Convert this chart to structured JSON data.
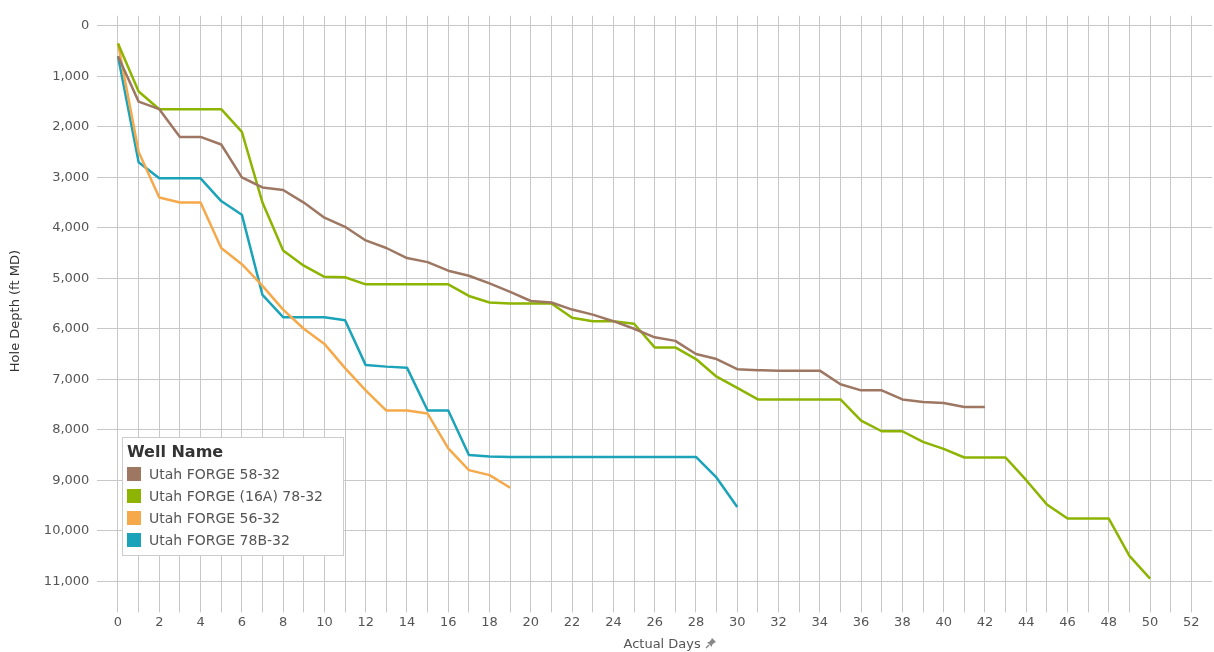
{
  "chart_data": {
    "type": "line",
    "xlabel": "Actual Days",
    "ylabel": "Hole Depth (ft MD)",
    "legend_title": "Well Name",
    "legend": "bottom left",
    "grid": true,
    "marker": "none",
    "line_style": "solid",
    "xlim": [
      -1,
      53
    ],
    "ylim": [
      11500,
      -200
    ],
    "xticks": [
      0,
      {
        "value": 1,
        "label": null
      },
      2,
      {
        "value": 3,
        "label": null
      },
      4,
      {
        "value": 5,
        "label": null
      },
      6,
      {
        "value": 7,
        "label": null
      },
      8,
      {
        "value": 9,
        "label": null
      },
      10,
      {
        "value": 11,
        "label": null
      },
      12,
      {
        "value": 13,
        "label": null
      },
      14,
      {
        "value": 15,
        "label": null
      },
      16,
      {
        "value": 17,
        "label": null
      },
      18,
      {
        "value": 19,
        "label": null
      },
      20,
      {
        "value": 21,
        "label": null
      },
      22,
      {
        "value": 23,
        "label": null
      },
      24,
      {
        "value": 25,
        "label": null
      },
      26,
      {
        "value": 27,
        "label": null
      },
      28,
      {
        "value": 29,
        "label": null
      },
      30,
      {
        "value": 31,
        "label": null
      },
      32,
      {
        "value": 33,
        "label": null
      },
      34,
      {
        "value": 35,
        "label": null
      },
      36,
      {
        "value": 37,
        "label": null
      },
      38,
      {
        "value": 39,
        "label": null
      },
      40,
      {
        "value": 41,
        "label": null
      },
      42,
      {
        "value": 43,
        "label": null
      },
      44,
      {
        "value": 45,
        "label": null
      },
      46,
      {
        "value": 47,
        "label": null
      },
      48,
      {
        "value": 49,
        "label": null
      },
      50,
      {
        "value": 51,
        "label": null
      },
      52
    ],
    "yticks": [
      0,
      {
        "value": 1000,
        "label": "1,000"
      },
      {
        "value": 2000,
        "label": "2,000"
      },
      {
        "value": 3000,
        "label": "3,000"
      },
      {
        "value": 4000,
        "label": "4,000"
      },
      {
        "value": 5000,
        "label": "5,000"
      },
      {
        "value": 6000,
        "label": "6,000"
      },
      {
        "value": 7000,
        "label": "7,000"
      },
      {
        "value": 8000,
        "label": "8,000"
      },
      {
        "value": 9000,
        "label": "9,000"
      },
      {
        "value": 10000,
        "label": "10,000"
      },
      {
        "value": 11000,
        "label": "11,000"
      }
    ],
    "series": [
      {
        "name": "Utah FORGE 58-32",
        "color": "#9e7763",
        "x": [
          0,
          1,
          2,
          3,
          4,
          5,
          6,
          7,
          8,
          9,
          10,
          11,
          12,
          13,
          14,
          15,
          16,
          17,
          18,
          19,
          20,
          21,
          22,
          23,
          24,
          25,
          26,
          27,
          28,
          29,
          30,
          31,
          32,
          33,
          34,
          35,
          36,
          37,
          38,
          39,
          40,
          41,
          42
        ],
        "values": [
          600,
          1500,
          1650,
          2200,
          2200,
          2350,
          3000,
          3200,
          3250,
          3500,
          3800,
          3980,
          4250,
          4400,
          4600,
          4680,
          4850,
          4950,
          5100,
          5270,
          5450,
          5480,
          5620,
          5720,
          5850,
          6000,
          6170,
          6240,
          6500,
          6600,
          6800,
          6820,
          6830,
          6830,
          6830,
          7100,
          7220,
          7220,
          7400,
          7450,
          7470,
          7550,
          7550
        ]
      },
      {
        "name": "Utah FORGE (16A) 78-32",
        "color": "#8cb400",
        "x": [
          0,
          1,
          2,
          3,
          4,
          5,
          6,
          7,
          8,
          9,
          10,
          11,
          12,
          13,
          14,
          15,
          16,
          17,
          18,
          19,
          20,
          21,
          22,
          23,
          24,
          25,
          26,
          27,
          28,
          29,
          30,
          31,
          32,
          33,
          34,
          35,
          36,
          37,
          38,
          39,
          40,
          41,
          42,
          43,
          44,
          45,
          46,
          47,
          48,
          49,
          50
        ],
        "values": [
          350,
          1300,
          1650,
          1650,
          1650,
          1650,
          2100,
          3500,
          4450,
          4750,
          4970,
          4980,
          5120,
          5120,
          5120,
          5120,
          5120,
          5350,
          5480,
          5500,
          5500,
          5500,
          5780,
          5850,
          5850,
          5900,
          6370,
          6370,
          6600,
          6950,
          7170,
          7400,
          7400,
          7400,
          7400,
          7400,
          7820,
          8030,
          8030,
          8240,
          8380,
          8550,
          8550,
          8550,
          9000,
          9480,
          9760,
          9760,
          9760,
          10500,
          10950
        ]
      },
      {
        "name": "Utah FORGE 56-32",
        "color": "#f5a94a",
        "x": [
          0,
          1,
          2,
          3,
          4,
          5,
          6,
          7,
          8,
          9,
          10,
          11,
          12,
          13,
          14,
          15,
          16,
          17,
          18,
          19
        ],
        "values": [
          350,
          2500,
          3400,
          3500,
          3500,
          4400,
          4720,
          5150,
          5620,
          6000,
          6300,
          6780,
          7220,
          7620,
          7620,
          7680,
          8370,
          8800,
          8900,
          9150
        ]
      },
      {
        "name": "Utah FORGE 78B-32",
        "color": "#1ba3b9",
        "x": [
          0,
          1,
          2,
          3,
          4,
          5,
          6,
          7,
          8,
          9,
          10,
          11,
          12,
          13,
          14,
          15,
          16,
          17,
          18,
          19,
          20,
          21,
          22,
          23,
          24,
          25,
          26,
          27,
          28,
          29,
          30
        ],
        "values": [
          600,
          2700,
          3020,
          3020,
          3020,
          3470,
          3740,
          5330,
          5770,
          5770,
          5770,
          5830,
          6720,
          6750,
          6770,
          7620,
          7620,
          8500,
          8530,
          8540,
          8540,
          8540,
          8540,
          8540,
          8540,
          8540,
          8540,
          8540,
          8540,
          8950,
          9530
        ]
      }
    ]
  }
}
